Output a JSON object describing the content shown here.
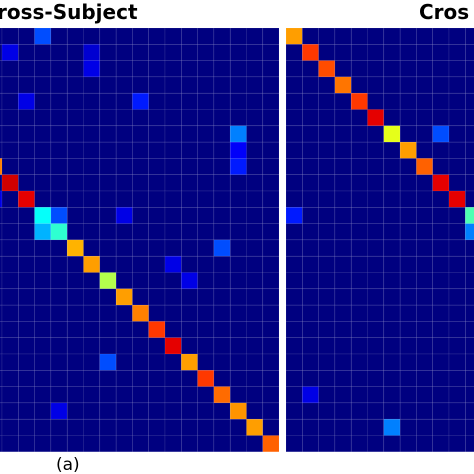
{
  "chart_data": [
    {
      "type": "heatmap",
      "title": "ross-Subject",
      "values": [
        [
          0,
          0,
          0,
          0.2,
          0,
          0,
          0,
          0,
          0,
          0,
          0,
          0,
          0,
          0,
          0,
          0,
          0,
          0
        ],
        [
          0,
          0.1,
          0,
          0,
          0,
          0,
          0.08,
          0,
          0,
          0,
          0,
          0,
          0,
          0,
          0,
          0,
          0,
          0
        ],
        [
          0,
          0,
          0,
          0,
          0,
          0,
          0.1,
          0,
          0,
          0,
          0,
          0,
          0,
          0,
          0,
          0,
          0,
          0
        ],
        [
          0,
          0,
          0,
          0,
          0,
          0,
          0,
          0,
          0,
          0,
          0,
          0,
          0,
          0,
          0,
          0,
          0,
          0
        ],
        [
          0,
          0,
          0.1,
          0,
          0,
          0,
          0,
          0,
          0,
          0.15,
          0,
          0,
          0,
          0,
          0,
          0,
          0,
          0
        ],
        [
          0,
          0,
          0,
          0,
          0,
          0,
          0,
          0,
          0,
          0,
          0,
          0,
          0,
          0,
          0,
          0,
          0,
          0
        ],
        [
          0,
          0,
          0,
          0,
          0,
          0,
          0,
          0,
          0,
          0,
          0,
          0,
          0,
          0,
          0,
          0.25,
          0,
          0
        ],
        [
          0,
          0,
          0,
          0,
          0,
          0,
          0,
          0,
          0,
          0,
          0,
          0,
          0,
          0,
          0,
          0.12,
          0,
          0
        ],
        [
          0.75,
          0,
          0,
          0,
          0,
          0,
          0,
          0,
          0,
          0,
          0,
          0,
          0,
          0,
          0,
          0.15,
          0,
          0
        ],
        [
          0,
          0.92,
          0,
          0,
          0,
          0,
          0,
          0,
          0,
          0,
          0,
          0,
          0,
          0,
          0,
          0,
          0,
          0
        ],
        [
          0.1,
          0,
          0.9,
          0,
          0,
          0,
          0,
          0,
          0,
          0,
          0,
          0,
          0,
          0,
          0,
          0,
          0,
          0
        ],
        [
          0,
          0,
          0,
          0.38,
          0.2,
          0,
          0,
          0,
          0.1,
          0,
          0,
          0,
          0,
          0,
          0,
          0,
          0,
          0
        ],
        [
          0,
          0,
          0,
          0.3,
          0.42,
          0,
          0,
          0,
          0,
          0,
          0,
          0,
          0,
          0,
          0,
          0,
          0,
          0
        ],
        [
          0,
          0,
          0,
          0,
          0,
          0.7,
          0,
          0,
          0,
          0,
          0,
          0,
          0,
          0,
          0.2,
          0,
          0,
          0
        ],
        [
          0,
          0,
          0,
          0,
          0,
          0,
          0.72,
          0,
          0,
          0,
          0,
          0.1,
          0,
          0,
          0,
          0,
          0,
          0
        ],
        [
          0,
          0,
          0,
          0,
          0,
          0,
          0,
          0.55,
          0,
          0,
          0,
          0,
          0.1,
          0,
          0,
          0,
          0,
          0
        ],
        [
          0,
          0,
          0,
          0,
          0,
          0,
          0,
          0,
          0.72,
          0,
          0,
          0,
          0,
          0,
          0,
          0,
          0,
          0
        ],
        [
          0,
          0,
          0,
          0,
          0,
          0,
          0,
          0,
          0,
          0.75,
          0,
          0,
          0,
          0,
          0,
          0,
          0,
          0
        ],
        [
          0,
          0,
          0,
          0,
          0,
          0,
          0,
          0,
          0,
          0,
          0.82,
          0,
          0,
          0,
          0,
          0,
          0,
          0
        ],
        [
          0,
          0,
          0,
          0,
          0,
          0,
          0,
          0,
          0,
          0,
          0,
          0.9,
          0,
          0,
          0,
          0,
          0,
          0
        ],
        [
          0,
          0,
          0,
          0,
          0,
          0,
          0,
          0.2,
          0,
          0,
          0,
          0,
          0.72,
          0,
          0,
          0,
          0,
          0
        ],
        [
          0,
          0,
          0,
          0,
          0,
          0,
          0,
          0,
          0,
          0,
          0,
          0,
          0,
          0.82,
          0,
          0,
          0,
          0
        ],
        [
          0,
          0,
          0,
          0,
          0,
          0,
          0,
          0,
          0,
          0,
          0,
          0,
          0,
          0,
          0.77,
          0,
          0,
          0
        ],
        [
          0,
          0,
          0,
          0,
          0.1,
          0,
          0,
          0,
          0,
          0,
          0,
          0,
          0,
          0,
          0,
          0.73,
          0,
          0
        ],
        [
          0,
          0,
          0,
          0,
          0,
          0,
          0,
          0,
          0,
          0,
          0,
          0,
          0,
          0,
          0,
          0,
          0.72,
          0
        ],
        [
          0,
          0,
          0,
          0,
          0,
          0,
          0,
          0,
          0,
          0,
          0,
          0,
          0,
          0,
          0,
          0,
          0,
          0.78
        ]
      ]
    },
    {
      "type": "heatmap",
      "title": "Cros",
      "values": [
        [
          0.72,
          0,
          0,
          0,
          0,
          0,
          0,
          0,
          0,
          0,
          0,
          0
        ],
        [
          0,
          0.82,
          0,
          0,
          0,
          0,
          0,
          0,
          0,
          0,
          0,
          0
        ],
        [
          0,
          0,
          0.8,
          0,
          0,
          0,
          0,
          0,
          0,
          0,
          0,
          0
        ],
        [
          0,
          0,
          0,
          0.76,
          0,
          0,
          0,
          0,
          0,
          0,
          0,
          0
        ],
        [
          0,
          0,
          0,
          0,
          0.82,
          0,
          0,
          0,
          0,
          0,
          0,
          0
        ],
        [
          0,
          0,
          0,
          0,
          0,
          0.9,
          0,
          0,
          0,
          0,
          0,
          0
        ],
        [
          0,
          0,
          0,
          0,
          0,
          0,
          0.6,
          0,
          0,
          0.2,
          0,
          0
        ],
        [
          0,
          0,
          0,
          0,
          0,
          0,
          0,
          0.72,
          0,
          0,
          0,
          0
        ],
        [
          0,
          0,
          0,
          0,
          0,
          0,
          0,
          0,
          0.78,
          0,
          0,
          0
        ],
        [
          0,
          0,
          0,
          0,
          0,
          0,
          0,
          0,
          0,
          0.9,
          0,
          0
        ],
        [
          0,
          0,
          0,
          0,
          0,
          0,
          0,
          0,
          0,
          0,
          0.9,
          0
        ],
        [
          0.15,
          0,
          0,
          0,
          0,
          0,
          0,
          0,
          0,
          0,
          0,
          0.45
        ],
        [
          0,
          0,
          0,
          0,
          0,
          0,
          0,
          0,
          0,
          0,
          0,
          0.25
        ],
        [
          0,
          0,
          0,
          0,
          0,
          0,
          0,
          0,
          0,
          0,
          0,
          0
        ],
        [
          0,
          0,
          0,
          0,
          0,
          0,
          0,
          0,
          0,
          0,
          0,
          0
        ],
        [
          0,
          0,
          0,
          0,
          0,
          0,
          0,
          0,
          0,
          0,
          0,
          0
        ],
        [
          0,
          0,
          0,
          0,
          0,
          0,
          0,
          0,
          0,
          0,
          0,
          0
        ],
        [
          0,
          0,
          0,
          0,
          0,
          0,
          0,
          0,
          0,
          0,
          0,
          0
        ],
        [
          0,
          0,
          0,
          0,
          0,
          0,
          0,
          0,
          0,
          0,
          0,
          0
        ],
        [
          0,
          0,
          0,
          0,
          0,
          0,
          0,
          0,
          0,
          0,
          0,
          0
        ],
        [
          0,
          0,
          0,
          0,
          0,
          0,
          0,
          0,
          0,
          0,
          0,
          0
        ],
        [
          0,
          0,
          0,
          0,
          0,
          0,
          0,
          0,
          0,
          0,
          0,
          0
        ],
        [
          0,
          0.1,
          0,
          0,
          0,
          0,
          0,
          0,
          0,
          0,
          0,
          0
        ],
        [
          0,
          0,
          0,
          0,
          0,
          0,
          0,
          0,
          0,
          0,
          0,
          0
        ],
        [
          0,
          0,
          0,
          0,
          0,
          0,
          0.25,
          0,
          0,
          0,
          0,
          0
        ],
        [
          0,
          0,
          0,
          0,
          0,
          0,
          0,
          0,
          0,
          0,
          0,
          0
        ]
      ]
    }
  ],
  "caption": "(a)"
}
